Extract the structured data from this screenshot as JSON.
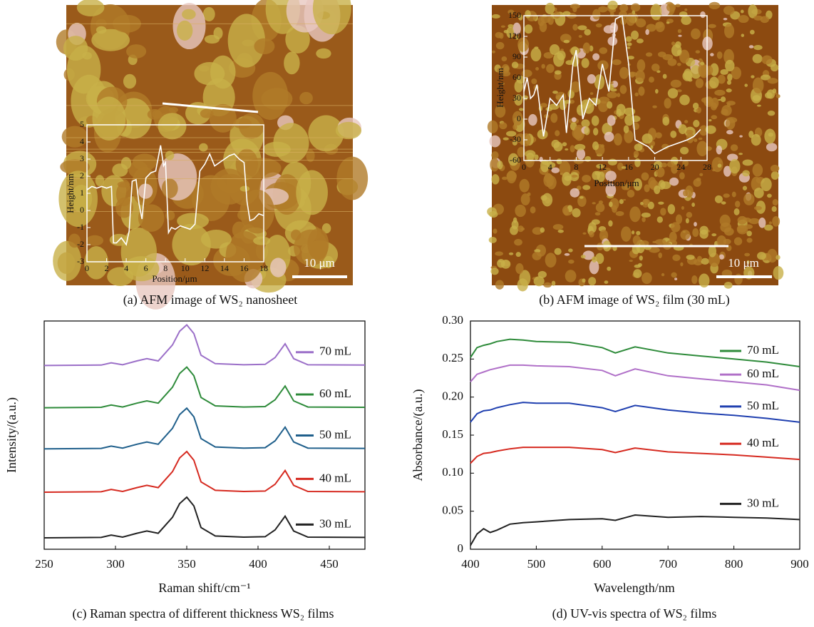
{
  "chart_data": [
    {
      "type": "line",
      "caption": "(a) AFM image of WS₂ nanosheet",
      "x_label": "Position/μm",
      "y_label": "Height/nm",
      "scale_bar": "10 μm",
      "xlim": [
        0,
        18
      ],
      "ylim": [
        -3,
        5
      ],
      "xticks": [
        0,
        2,
        4,
        6,
        8,
        10,
        12,
        14,
        16,
        18
      ],
      "yticks": [
        -3,
        -2,
        -1,
        0,
        1,
        2,
        3,
        4,
        5
      ],
      "x": [
        0,
        0.5,
        1,
        1.5,
        2,
        2.5,
        2.7,
        3,
        3.5,
        4,
        4.3,
        4.6,
        5,
        5.3,
        5.6,
        6,
        6.5,
        7,
        7.5,
        7.8,
        8,
        8.3,
        8.6,
        9,
        9.5,
        10,
        10.5,
        11,
        11.5,
        12,
        12.5,
        13,
        13.5,
        14,
        14.5,
        15,
        15.5,
        16,
        16.3,
        16.6,
        17,
        17.5,
        18
      ],
      "series": [
        {
          "color": "#ffffff",
          "values": [
            1.2,
            1.4,
            1.3,
            1.4,
            1.3,
            1.4,
            -1.9,
            -1.9,
            -1.6,
            -2.0,
            -1.2,
            1.7,
            1.8,
            0.4,
            -0.5,
            1.9,
            2.2,
            2.3,
            3.8,
            2.6,
            2.8,
            -1.3,
            -1.0,
            -1.1,
            -0.9,
            -1.0,
            -1.1,
            -0.8,
            2.3,
            2.7,
            3.3,
            2.6,
            2.8,
            3.0,
            3.2,
            3.3,
            3.0,
            2.8,
            0.5,
            -0.6,
            -0.5,
            -0.2,
            -0.3
          ]
        }
      ]
    },
    {
      "type": "line",
      "caption": "(b) AFM image of WS₂ film (30 mL)",
      "x_label": "Position/μm",
      "y_label": "Height/nm",
      "scale_bar": "10 μm",
      "xlim": [
        0,
        28
      ],
      "ylim": [
        -60,
        150
      ],
      "xticks": [
        0,
        4,
        8,
        12,
        16,
        20,
        24,
        28
      ],
      "yticks": [
        -60,
        -30,
        0,
        30,
        60,
        90,
        120,
        150
      ],
      "x": [
        0,
        0.5,
        1,
        1.5,
        2,
        3,
        4,
        5,
        6,
        6.5,
        7.5,
        8,
        9,
        10,
        11,
        12,
        13,
        14,
        15,
        16,
        17,
        19,
        20,
        22,
        25,
        26,
        27
      ],
      "series": [
        {
          "color": "#ffffff",
          "values": [
            40,
            60,
            30,
            35,
            50,
            -25,
            30,
            20,
            35,
            -20,
            80,
            100,
            0,
            30,
            20,
            80,
            40,
            145,
            150,
            80,
            -30,
            -40,
            -50,
            -40,
            -30,
            -25,
            -15
          ]
        }
      ]
    },
    {
      "type": "line",
      "caption": "(c) Raman spectra of different thickness WS₂ films",
      "x_label": "Raman shift/cm⁻¹",
      "y_label": "Intensity/(a.u.)",
      "xlim": [
        250,
        475
      ],
      "ylim": [
        0,
        10
      ],
      "xticks": [
        250,
        300,
        350,
        400,
        450
      ],
      "x": [
        250,
        290,
        297,
        305,
        315,
        322,
        330,
        340,
        345,
        350,
        355,
        360,
        370,
        390,
        405,
        412,
        419,
        425,
        435,
        475
      ],
      "series": [
        {
          "name": "70 mL",
          "color": "#9b6fc8",
          "values": [
            8.05,
            8.07,
            8.17,
            8.08,
            8.25,
            8.35,
            8.25,
            8.95,
            9.55,
            9.83,
            9.45,
            8.5,
            8.13,
            8.08,
            8.1,
            8.4,
            9.0,
            8.35,
            8.08,
            8.07
          ]
        },
        {
          "name": "60 mL",
          "color": "#2e8b3a",
          "values": [
            6.2,
            6.22,
            6.32,
            6.23,
            6.4,
            6.5,
            6.4,
            7.1,
            7.7,
            7.98,
            7.6,
            6.65,
            6.28,
            6.23,
            6.25,
            6.55,
            7.15,
            6.5,
            6.23,
            6.22
          ]
        },
        {
          "name": "50 mL",
          "color": "#1f5f8b",
          "values": [
            4.4,
            4.42,
            4.52,
            4.43,
            4.6,
            4.7,
            4.6,
            5.3,
            5.9,
            6.18,
            5.8,
            4.85,
            4.48,
            4.43,
            4.45,
            4.75,
            5.35,
            4.7,
            4.43,
            4.42
          ]
        },
        {
          "name": "40 mL",
          "color": "#d62a20",
          "values": [
            2.5,
            2.52,
            2.62,
            2.53,
            2.7,
            2.8,
            2.7,
            3.4,
            4.0,
            4.28,
            3.9,
            2.95,
            2.58,
            2.53,
            2.55,
            2.85,
            3.45,
            2.8,
            2.53,
            2.52
          ]
        },
        {
          "name": "30 mL",
          "color": "#222222",
          "values": [
            0.5,
            0.52,
            0.62,
            0.53,
            0.7,
            0.8,
            0.7,
            1.4,
            2.0,
            2.28,
            1.9,
            0.95,
            0.58,
            0.53,
            0.55,
            0.85,
            1.45,
            0.8,
            0.53,
            0.52
          ]
        }
      ]
    },
    {
      "type": "line",
      "caption": "(d) UV-vis spectra of WS₂ films",
      "x_label": "Wavelength/nm",
      "y_label": "Absorbance/(a.u.)",
      "xlim": [
        400,
        900
      ],
      "ylim": [
        0,
        0.3
      ],
      "xticks": [
        400,
        500,
        600,
        700,
        800,
        900
      ],
      "yticks": [
        0,
        0.05,
        {
          "value": 0.1,
          "label": "0.10"
        },
        0.15,
        {
          "value": 0.2,
          "label": "0.20"
        },
        0.25,
        {
          "value": 0.3,
          "label": "0.30"
        }
      ],
      "x": [
        400,
        410,
        420,
        430,
        440,
        460,
        480,
        500,
        550,
        600,
        620,
        650,
        700,
        750,
        800,
        850,
        900
      ],
      "series": [
        {
          "name": "70 mL",
          "color": "#2e8b3a",
          "values": [
            0.252,
            0.265,
            0.268,
            0.27,
            0.273,
            0.276,
            0.275,
            0.273,
            0.272,
            0.265,
            0.258,
            0.266,
            0.258,
            0.254,
            0.25,
            0.246,
            0.24
          ]
        },
        {
          "name": "60 mL",
          "color": "#b070c8",
          "values": [
            0.22,
            0.23,
            0.233,
            0.236,
            0.238,
            0.242,
            0.242,
            0.241,
            0.24,
            0.235,
            0.228,
            0.237,
            0.228,
            0.224,
            0.22,
            0.216,
            0.209
          ]
        },
        {
          "name": "50 mL",
          "color": "#2040b0",
          "values": [
            0.167,
            0.178,
            0.182,
            0.183,
            0.186,
            0.19,
            0.193,
            0.192,
            0.192,
            0.186,
            0.181,
            0.189,
            0.183,
            0.179,
            0.176,
            0.172,
            0.167
          ]
        },
        {
          "name": "40 mL",
          "color": "#d62a20",
          "values": [
            0.113,
            0.122,
            0.126,
            0.127,
            0.129,
            0.132,
            0.134,
            0.134,
            0.134,
            0.131,
            0.127,
            0.133,
            0.128,
            0.126,
            0.124,
            0.121,
            0.118
          ]
        },
        {
          "name": "30 mL",
          "color": "#222222",
          "values": [
            0.005,
            0.02,
            0.027,
            0.022,
            0.025,
            0.033,
            0.035,
            0.036,
            0.039,
            0.04,
            0.038,
            0.045,
            0.042,
            0.043,
            0.042,
            0.041,
            0.039
          ]
        }
      ]
    }
  ]
}
